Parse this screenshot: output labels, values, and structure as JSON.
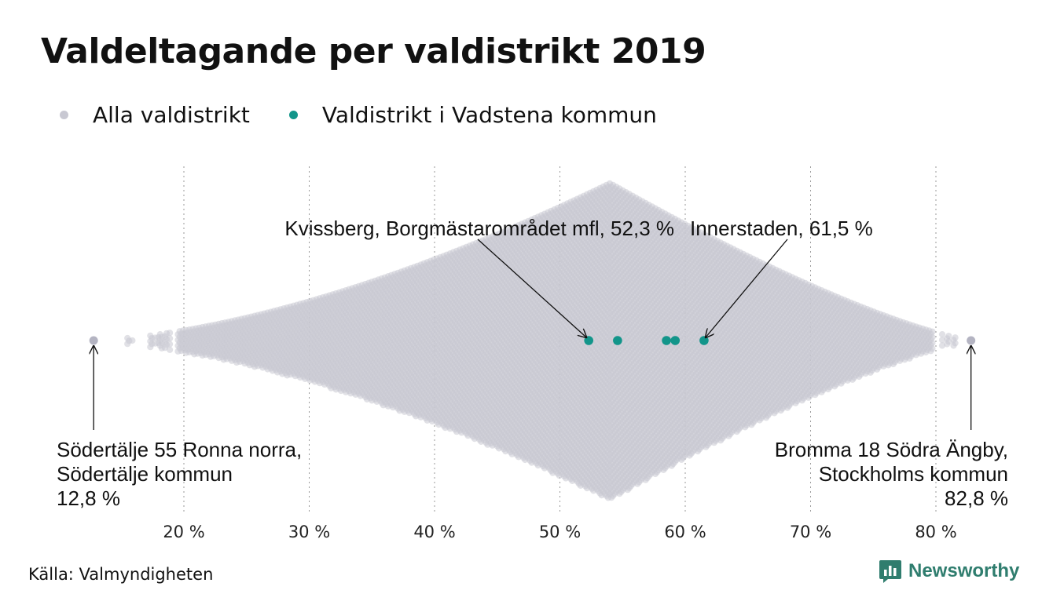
{
  "header": {
    "title": "Valdeltagande per valdistrikt 2019"
  },
  "legend": [
    {
      "label": "Alla valdistrikt",
      "color": "#c8c8d2"
    },
    {
      "label": "Valdistrikt i Vadstena kommun",
      "color": "#12958a"
    }
  ],
  "chart_data": {
    "type": "scatter",
    "subtype": "beeswarm",
    "title": "Valdeltagande per valdistrikt 2019",
    "xlabel": "",
    "ylabel": "",
    "xlim": [
      10,
      85
    ],
    "x_ticks": [
      20,
      30,
      40,
      50,
      60,
      70,
      80
    ],
    "x_tick_labels": [
      "20 %",
      "30 %",
      "40 %",
      "50 %",
      "60 %",
      "70 %",
      "80 %"
    ],
    "grid": "vertical dotted",
    "series": [
      {
        "name": "Alla valdistrikt",
        "color": "#c8c8d2",
        "extremes": [
          12.8,
          82.8
        ],
        "distribution_peak": 54
      },
      {
        "name": "Valdistrikt i Vadstena kommun",
        "color": "#12958a",
        "values": [
          52.3,
          54.6,
          58.5,
          59.2,
          61.5
        ]
      }
    ],
    "annotations": [
      {
        "lines": [
          "Kvissberg, Borgmästarområdet mfl, 52,3 %"
        ],
        "x": 52.3
      },
      {
        "lines": [
          "Innerstaden, 61,5 %"
        ],
        "x": 61.5
      },
      {
        "lines": [
          "Södertälje 55 Ronna norra,",
          "Södertälje kommun",
          "12,8 %"
        ],
        "x": 12.8
      },
      {
        "lines": [
          "Bromma 18 Södra Ängby,",
          "Stockholms kommun",
          "82,8 %"
        ],
        "x": 82.8
      }
    ]
  },
  "footer": {
    "source": "Källa: Valmyndigheten",
    "brand": "Newsworthy"
  }
}
